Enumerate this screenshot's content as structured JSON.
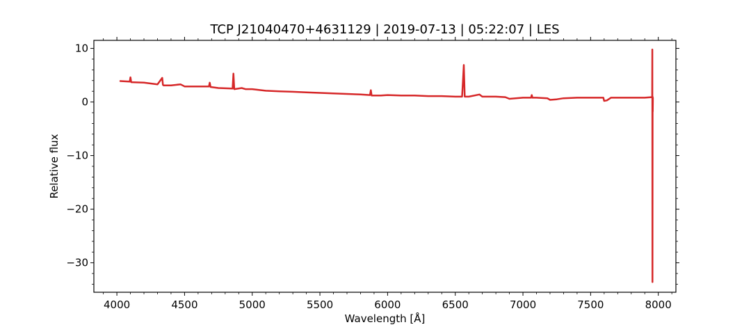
{
  "chart_data": {
    "type": "line",
    "title": "TCP J21040470+4631129 | 2019-07-13 | 05:22:07 | LES",
    "xlabel": "Wavelength [Å]",
    "ylabel": "Relative flux",
    "xlim": [
      3830,
      8130
    ],
    "ylim": [
      -35.5,
      11.5
    ],
    "xticks": [
      4000,
      4500,
      5000,
      5500,
      6000,
      6500,
      7000,
      7500,
      8000
    ],
    "yticks": [
      10,
      0,
      -10,
      -20,
      -30
    ],
    "xtick_labels": [
      "4000",
      "4500",
      "5000",
      "5500",
      "6000",
      "6500",
      "7000",
      "7500",
      "8000"
    ],
    "ytick_labels": [
      "10",
      "0",
      "−10",
      "−20",
      "−30"
    ],
    "grid": false,
    "series": [
      {
        "color": "#d62728",
        "x": [
          4025,
          4095,
          4100,
          4106,
          4200,
          4300,
          4335,
          4340,
          4345,
          4400,
          4470,
          4500,
          4600,
          4680,
          4686,
          4692,
          4750,
          4855,
          4861,
          4867,
          4922,
          4950,
          5000,
          5100,
          5200,
          5300,
          5400,
          5500,
          5600,
          5700,
          5800,
          5870,
          5876,
          5882,
          5950,
          6000,
          6100,
          6200,
          6300,
          6400,
          6500,
          6550,
          6556,
          6563,
          6570,
          6600,
          6678,
          6700,
          6800,
          6870,
          6900,
          7000,
          7060,
          7065,
          7070,
          7100,
          7180,
          7200,
          7250,
          7300,
          7400,
          7500,
          7594,
          7600,
          7620,
          7650,
          7700,
          7800,
          7900,
          7950,
          7955,
          7956,
          7957,
          7958,
          7959,
          7960
        ],
        "y": [
          3.9,
          3.8,
          4.6,
          3.7,
          3.6,
          3.3,
          4.5,
          3.2,
          3.1,
          3.1,
          3.3,
          2.9,
          2.9,
          2.9,
          3.6,
          2.8,
          2.6,
          2.5,
          5.3,
          2.4,
          2.6,
          2.4,
          2.4,
          2.1,
          2.0,
          1.9,
          1.8,
          1.7,
          1.6,
          1.5,
          1.4,
          1.3,
          2.2,
          1.2,
          1.2,
          1.3,
          1.2,
          1.2,
          1.1,
          1.1,
          1.0,
          1.0,
          3.5,
          6.9,
          1.0,
          1.0,
          1.4,
          1.0,
          1.0,
          0.9,
          0.6,
          0.8,
          0.8,
          1.3,
          0.8,
          0.8,
          0.7,
          0.4,
          0.5,
          0.7,
          0.8,
          0.8,
          0.8,
          0.2,
          0.3,
          0.8,
          0.8,
          0.8,
          0.8,
          0.9,
          0.9,
          9.8,
          -33.6,
          1.0,
          -1.8,
          0.8
        ]
      }
    ]
  }
}
